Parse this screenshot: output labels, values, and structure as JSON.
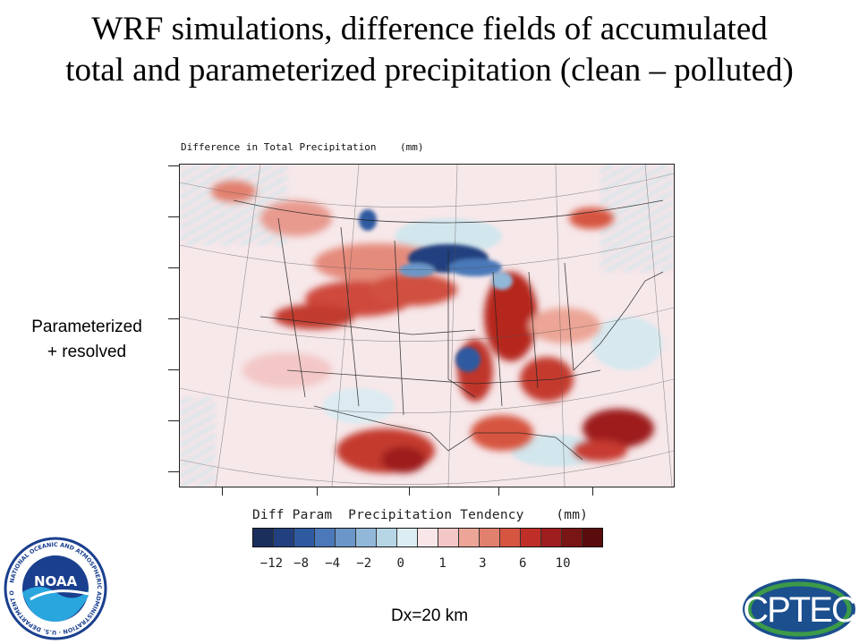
{
  "slide": {
    "title_line1": "WRF simulations, difference fields of accumulated",
    "title_line2": "total and parameterized precipitation (clean – polluted)",
    "side_label_line1": "Parameterized",
    "side_label_line2": "+ resolved",
    "resolution": "Dx=20 km"
  },
  "map": {
    "title": "Difference in Total Precipitation    (mm)"
  },
  "colorbar": {
    "title": "Diff Param  Precipitation Tendency    (mm)",
    "colors": [
      "#1b2f5c",
      "#22407f",
      "#2e5aa0",
      "#4a78b8",
      "#6b97c8",
      "#91b8d8",
      "#b6d6e6",
      "#dcedf4",
      "#f8e6e8",
      "#f3c7c6",
      "#eca596",
      "#e2806e",
      "#d65541",
      "#bf2f27",
      "#9e1e1f",
      "#7a1515",
      "#5a0c0c"
    ],
    "labels": [
      "−12",
      "−8",
      "−4",
      "−2",
      "0",
      "1",
      "3",
      "6",
      "10"
    ]
  },
  "logos": {
    "noaa_wordmark": "NOAA",
    "noaa_ring_text": "NATIONAL OCEANIC AND ATMOSPHERIC ADMINISTRATION · U.S. DEPARTMENT OF COMMERCE",
    "cptec_wordmark": "CPTEC"
  },
  "icons": {
    "noaa": "noaa-logo-icon",
    "cptec": "cptec-logo-icon"
  }
}
